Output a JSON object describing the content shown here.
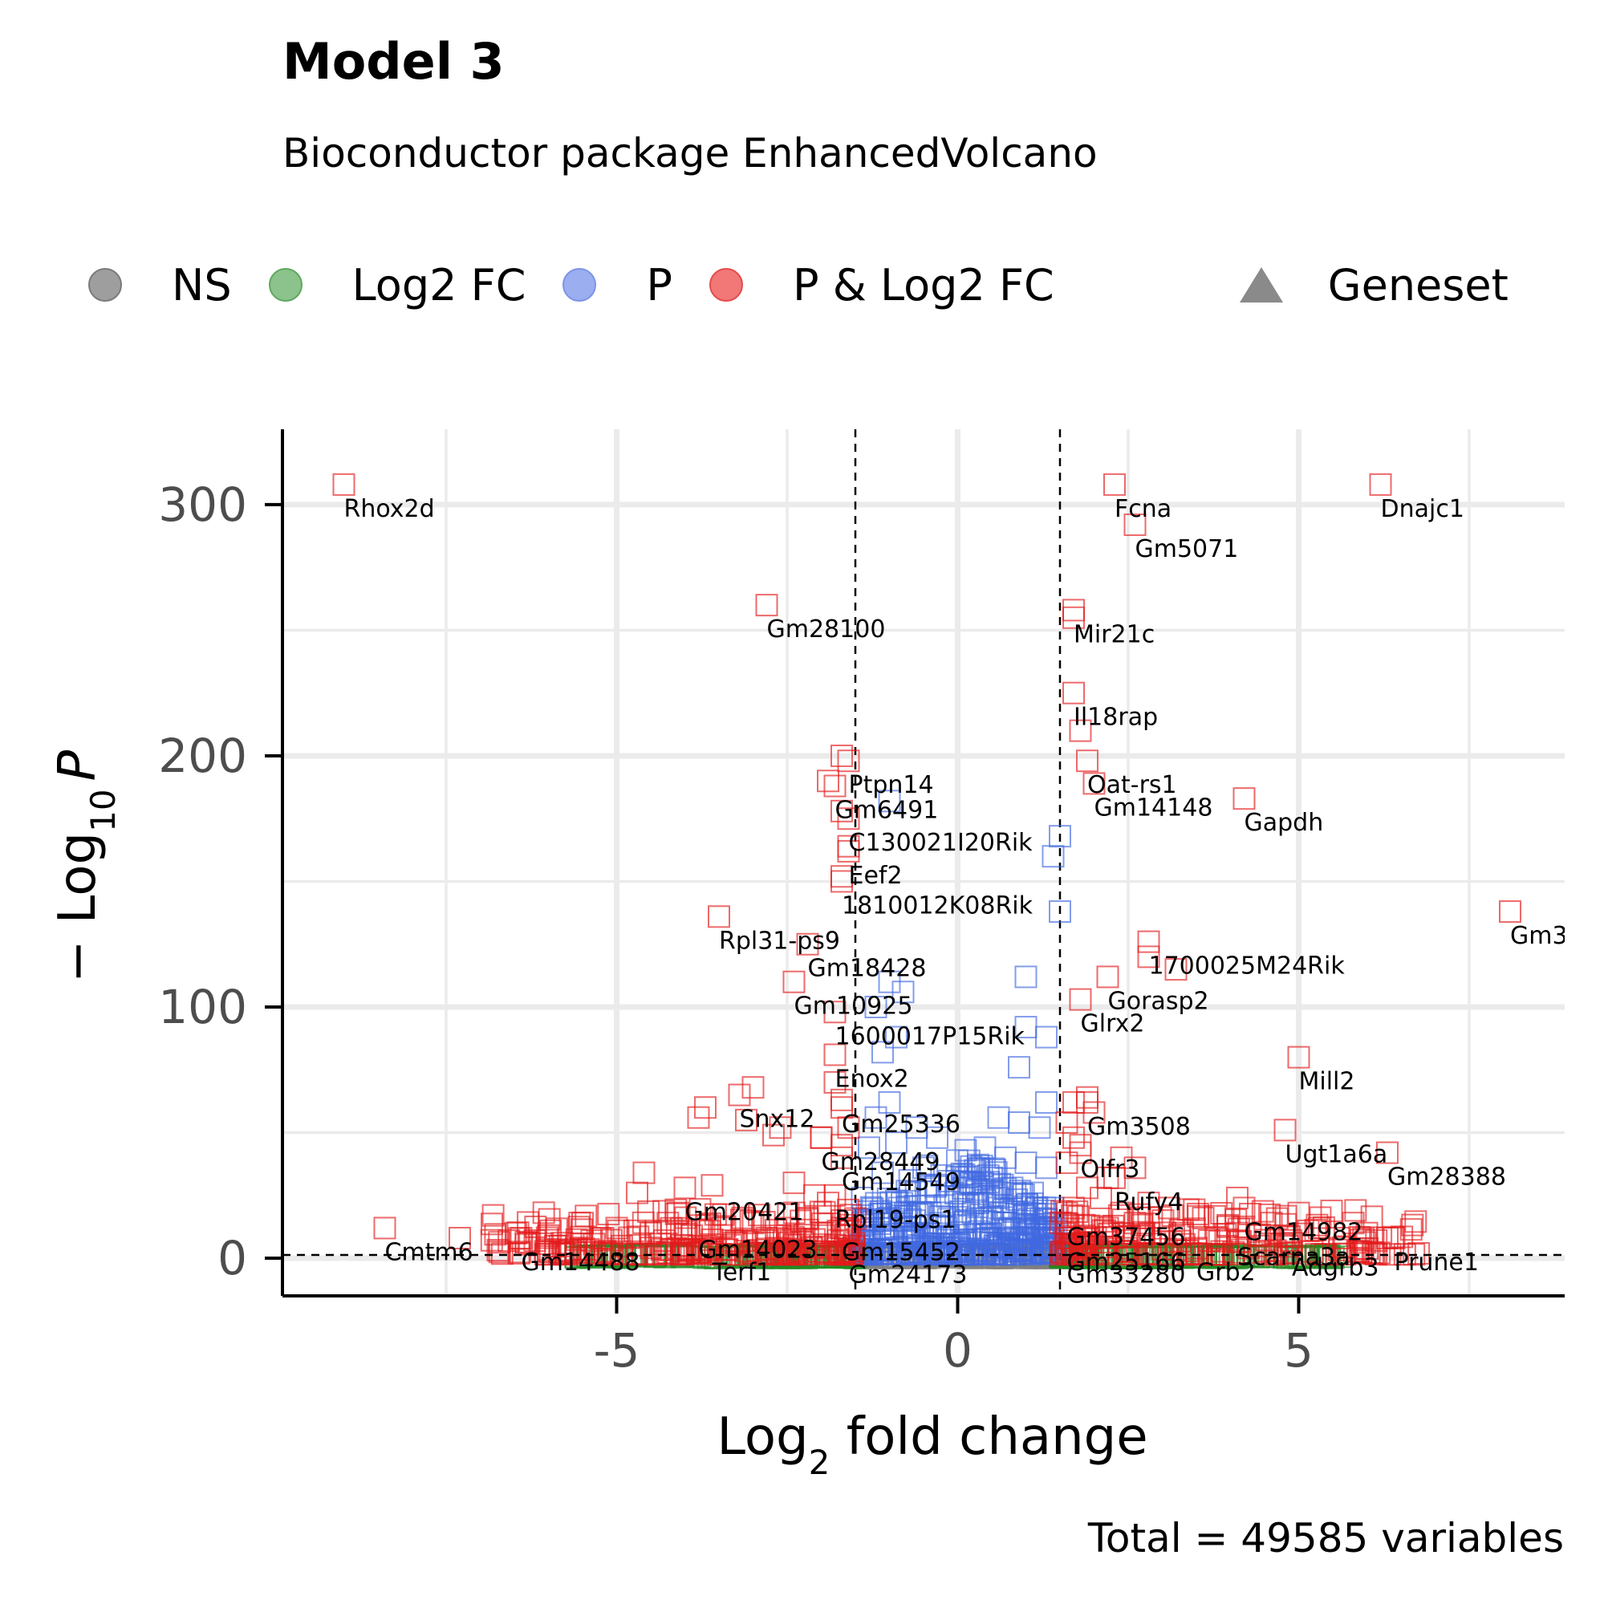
{
  "chart_data": {
    "type": "scatter",
    "title": "Model 3",
    "subtitle": "Bioconductor package EnhancedVolcano",
    "caption": "Total = 49585 variables",
    "xlabel_main": "Log",
    "xlabel_sub": "2",
    "xlabel_rest": " fold change",
    "ylabel_prefix": "− Log",
    "ylabel_sub": "10",
    "ylabel_var": "P",
    "xlim": [
      -9.9,
      8.9
    ],
    "ylim": [
      -15,
      330
    ],
    "x_ticks": [
      -5,
      0,
      5
    ],
    "x_tick_labels": [
      "-5",
      "0",
      "5"
    ],
    "y_ticks": [
      0,
      100,
      200,
      300
    ],
    "y_tick_labels": [
      "0",
      "100",
      "200",
      "300"
    ],
    "fc_cutoff": 1.5,
    "p_cutoff_y": 1.3,
    "grid": true,
    "legend_position": "top",
    "legend": [
      {
        "key": "NS",
        "label": "NS",
        "color": "#9e9e9e"
      },
      {
        "key": "Log2FC",
        "label": "Log2 FC",
        "color": "#8cc28c"
      },
      {
        "key": "P",
        "label": "P",
        "color": "#9aaef0"
      },
      {
        "key": "PFC",
        "label": "P & Log2 FC",
        "color": "#f27777"
      }
    ],
    "shape_legend": {
      "label": "Geneset"
    },
    "colors": {
      "NS": "#7f7f7f",
      "Log2FC": "#228b22",
      "P": "#4169e1",
      "PFC": "#e31a1c"
    },
    "labeled_points": [
      {
        "gene": "Rhox2d",
        "x": -9.0,
        "y": 308
      },
      {
        "gene": "Fcna",
        "x": 2.3,
        "y": 308
      },
      {
        "gene": "Dnajc1",
        "x": 6.2,
        "y": 308
      },
      {
        "gene": "Gm5071",
        "x": 2.6,
        "y": 292
      },
      {
        "gene": "Gm28100",
        "x": -2.8,
        "y": 260
      },
      {
        "gene": "Mir21c",
        "x": 1.7,
        "y": 258
      },
      {
        "gene": "Il18rap",
        "x": 1.7,
        "y": 225
      },
      {
        "gene": "Oat-rs1",
        "x": 1.9,
        "y": 198
      },
      {
        "gene": "Ptpn14",
        "x": -1.6,
        "y": 198
      },
      {
        "gene": "Gm14148",
        "x": 2.0,
        "y": 189
      },
      {
        "gene": "Gm6491",
        "x": -1.8,
        "y": 188
      },
      {
        "gene": "Gapdh",
        "x": 4.2,
        "y": 183
      },
      {
        "gene": "C130021I20Rik",
        "x": -1.6,
        "y": 175
      },
      {
        "gene": "Eef2",
        "x": -1.6,
        "y": 162
      },
      {
        "gene": "1810012K08Rik",
        "x": -1.7,
        "y": 150
      },
      {
        "gene": "Gm3",
        "x": 8.1,
        "y": 138
      },
      {
        "gene": "Rpl31-ps9",
        "x": -3.5,
        "y": 136
      },
      {
        "gene": "Gm18428",
        "x": -2.2,
        "y": 125
      },
      {
        "gene": "1700025M24Rik",
        "x": 2.8,
        "y": 126
      },
      {
        "gene": "Gorasp2",
        "x": 2.2,
        "y": 112
      },
      {
        "gene": "Gm10925",
        "x": -2.4,
        "y": 110
      },
      {
        "gene": "Glrx2",
        "x": 1.8,
        "y": 103
      },
      {
        "gene": "1600017P15Rik",
        "x": -1.8,
        "y": 98
      },
      {
        "gene": "Mill2",
        "x": 5.0,
        "y": 80
      },
      {
        "gene": "Enox2",
        "x": -1.8,
        "y": 81
      },
      {
        "gene": "Snx12",
        "x": -3.2,
        "y": 65
      },
      {
        "gene": "Gm25336",
        "x": -1.7,
        "y": 63
      },
      {
        "gene": "Gm3508",
        "x": 1.9,
        "y": 62
      },
      {
        "gene": "Ugt1a6a",
        "x": 4.8,
        "y": 51
      },
      {
        "gene": "Olfr3",
        "x": 1.8,
        "y": 45
      },
      {
        "gene": "Gm28449",
        "x": -2.0,
        "y": 48
      },
      {
        "gene": "Gm28388",
        "x": 6.3,
        "y": 42
      },
      {
        "gene": "Gm14549",
        "x": -1.7,
        "y": 40
      },
      {
        "gene": "Rufy4",
        "x": 2.3,
        "y": 32
      },
      {
        "gene": "Gm20421",
        "x": -4.0,
        "y": 28
      },
      {
        "gene": "Rpl19-ps1",
        "x": -1.8,
        "y": 25
      },
      {
        "gene": "Gm14982",
        "x": 4.2,
        "y": 20
      },
      {
        "gene": "Gm37456",
        "x": 1.6,
        "y": 18
      },
      {
        "gene": "Cmtm6",
        "x": -8.4,
        "y": 12
      },
      {
        "gene": "Gm14023",
        "x": -3.8,
        "y": 13
      },
      {
        "gene": "Gm15452",
        "x": -1.7,
        "y": 12
      },
      {
        "gene": "Scarna3a",
        "x": 4.1,
        "y": 10
      },
      {
        "gene": "Gm25166",
        "x": 1.6,
        "y": 8
      },
      {
        "gene": "Gm14488",
        "x": -6.4,
        "y": 8
      },
      {
        "gene": "Terf1",
        "x": -3.6,
        "y": 4
      },
      {
        "gene": "Gm24173",
        "x": -1.6,
        "y": 3
      },
      {
        "gene": "Gm33280",
        "x": 1.6,
        "y": 3
      },
      {
        "gene": "Grb2",
        "x": 3.5,
        "y": 4
      },
      {
        "gene": "Adgrb3",
        "x": 4.9,
        "y": 6
      },
      {
        "gene": "Prune1",
        "x": 6.4,
        "y": 8
      }
    ],
    "extra_sig_points": [
      [
        -1.7,
        200
      ],
      [
        -1.9,
        190
      ],
      [
        -1.7,
        178
      ],
      [
        -1.6,
        164
      ],
      [
        -1.7,
        152
      ],
      [
        -3.0,
        68
      ],
      [
        -3.7,
        60
      ],
      [
        -3.8,
        56
      ],
      [
        -3.1,
        55
      ],
      [
        -2.6,
        52
      ],
      [
        -2.7,
        49
      ],
      [
        -2.0,
        48
      ],
      [
        -1.8,
        70
      ],
      [
        -1.7,
        60
      ],
      [
        -1.6,
        52
      ],
      [
        -1.7,
        45
      ],
      [
        -4.6,
        34
      ],
      [
        -4.7,
        26
      ],
      [
        -3.6,
        29
      ],
      [
        -2.4,
        30
      ],
      [
        -2.1,
        25
      ],
      [
        -1.9,
        22
      ],
      [
        -4.1,
        18
      ],
      [
        -5.0,
        12
      ],
      [
        -5.5,
        14
      ],
      [
        -3.0,
        14
      ],
      [
        -2.5,
        12
      ],
      [
        -2.2,
        16
      ],
      [
        -7.3,
        8
      ],
      [
        -6.2,
        7
      ],
      [
        -6.0,
        9
      ],
      [
        -5.8,
        6
      ],
      [
        -5.2,
        8
      ],
      [
        -4.5,
        10
      ],
      [
        -4.3,
        7
      ],
      [
        -3.9,
        9
      ],
      [
        -3.3,
        7
      ],
      [
        -2.8,
        8
      ],
      [
        -2.0,
        10
      ],
      [
        -1.7,
        15
      ],
      [
        1.7,
        62
      ],
      [
        1.9,
        64
      ],
      [
        2.0,
        58
      ],
      [
        1.6,
        54
      ],
      [
        1.7,
        48
      ],
      [
        1.8,
        42
      ],
      [
        2.4,
        40
      ],
      [
        2.6,
        36
      ],
      [
        2.2,
        32
      ],
      [
        1.6,
        38
      ],
      [
        1.9,
        28
      ],
      [
        2.1,
        24
      ],
      [
        2.8,
        22
      ],
      [
        3.1,
        20
      ],
      [
        3.6,
        16
      ],
      [
        4.1,
        24
      ],
      [
        4.6,
        14
      ],
      [
        5.0,
        18
      ],
      [
        5.3,
        12
      ],
      [
        5.8,
        14
      ],
      [
        6.0,
        10
      ],
      [
        6.3,
        8
      ],
      [
        5.6,
        8
      ],
      [
        2.6,
        14
      ],
      [
        2.2,
        12
      ],
      [
        3.3,
        10
      ],
      [
        3.8,
        8
      ],
      [
        4.4,
        9
      ],
      [
        1.7,
        20
      ],
      [
        2.4,
        18
      ],
      [
        2.8,
        120
      ],
      [
        3.2,
        115
      ],
      [
        1.8,
        210
      ],
      [
        1.7,
        255
      ]
    ],
    "p_points": [
      [
        -1.0,
        182
      ],
      [
        1.5,
        168
      ],
      [
        1.4,
        160
      ],
      [
        1.5,
        138
      ],
      [
        1.0,
        112
      ],
      [
        -1.0,
        110
      ],
      [
        -0.8,
        106
      ],
      [
        -1.2,
        100
      ],
      [
        1.0,
        92
      ],
      [
        1.3,
        88
      ],
      [
        -0.9,
        88
      ],
      [
        -1.1,
        82
      ],
      [
        0.9,
        76
      ],
      [
        1.3,
        62
      ],
      [
        -1.0,
        62
      ],
      [
        -1.2,
        56
      ],
      [
        -0.6,
        52
      ],
      [
        -0.3,
        48
      ],
      [
        0.6,
        56
      ],
      [
        0.9,
        54
      ],
      [
        1.2,
        52
      ],
      [
        -0.9,
        46
      ],
      [
        -1.3,
        44
      ],
      [
        0.4,
        44
      ],
      [
        0.7,
        40
      ],
      [
        1.0,
        38
      ],
      [
        1.3,
        36
      ],
      [
        -0.5,
        36
      ],
      [
        -1.1,
        34
      ],
      [
        0.2,
        30
      ],
      [
        0.5,
        32
      ],
      [
        0.8,
        28
      ],
      [
        1.1,
        26
      ],
      [
        -0.7,
        26
      ],
      [
        -1.4,
        24
      ],
      [
        0.3,
        22
      ],
      [
        0.6,
        20
      ],
      [
        1.4,
        20
      ],
      [
        -0.4,
        18
      ],
      [
        -1.0,
        16
      ]
    ]
  }
}
